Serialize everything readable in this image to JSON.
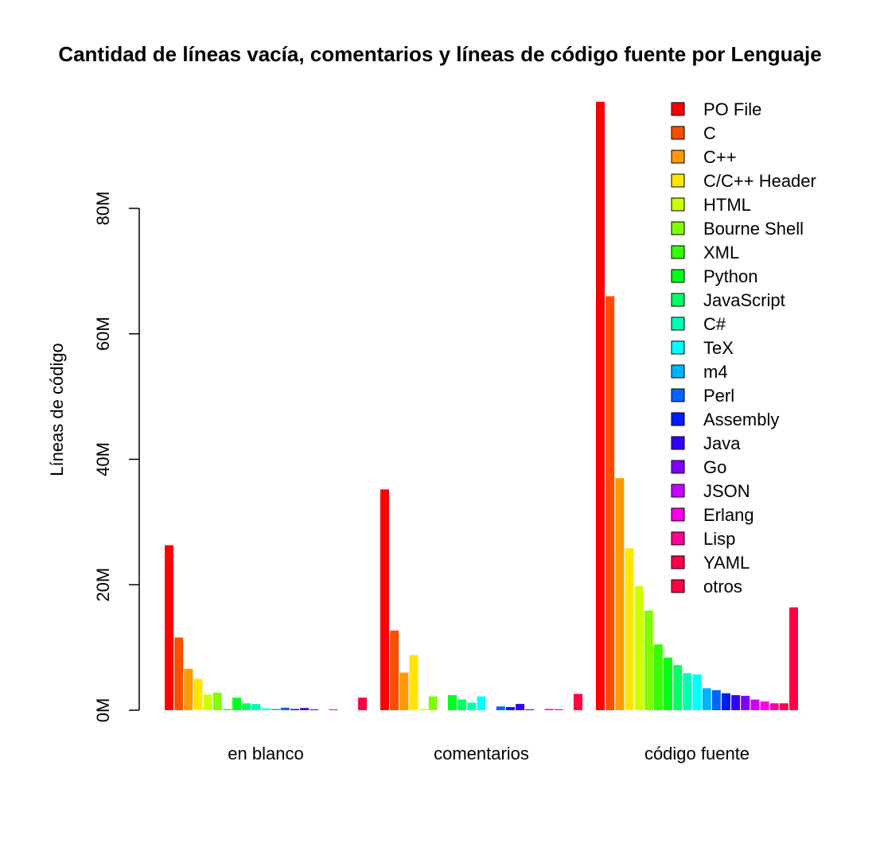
{
  "chart_data": {
    "type": "bar",
    "grouped": true,
    "title": "Cantidad de líneas vacía, comentarios y líneas de código fuente por Lenguaje",
    "ylabel": "Líneas de código",
    "ylim": [
      0,
      100000000
    ],
    "yticks": [
      {
        "value": 0,
        "label": "0M"
      },
      {
        "value": 20000000,
        "label": "20M"
      },
      {
        "value": 40000000,
        "label": "40M"
      },
      {
        "value": 60000000,
        "label": "60M"
      },
      {
        "value": 80000000,
        "label": "80M"
      }
    ],
    "categories": [
      "en blanco",
      "comentarios",
      "código fuente"
    ],
    "grid": false,
    "legend_position": "top-right",
    "series": [
      {
        "name": "PO File",
        "color": "#FF0000",
        "values": [
          26300000,
          35200000,
          97000000
        ]
      },
      {
        "name": "C",
        "color": "#FF4D00",
        "values": [
          11600000,
          12700000,
          66000000
        ]
      },
      {
        "name": "C++",
        "color": "#FF9900",
        "values": [
          6600000,
          6000000,
          37000000
        ]
      },
      {
        "name": "C/C++ Header",
        "color": "#FFE500",
        "values": [
          5000000,
          8800000,
          25800000
        ]
      },
      {
        "name": "HTML",
        "color": "#CCFF00",
        "values": [
          2500000,
          200000,
          19800000
        ]
      },
      {
        "name": "Bourne Shell",
        "color": "#80FF00",
        "values": [
          2800000,
          2200000,
          15900000
        ]
      },
      {
        "name": "XML",
        "color": "#33FF00",
        "values": [
          200000,
          0,
          10500000
        ]
      },
      {
        "name": "Python",
        "color": "#00FF19",
        "values": [
          2000000,
          2400000,
          8400000
        ]
      },
      {
        "name": "JavaScript",
        "color": "#00FF66",
        "values": [
          1100000,
          1700000,
          7200000
        ]
      },
      {
        "name": "C#",
        "color": "#00FFB2",
        "values": [
          1000000,
          1200000,
          5900000
        ]
      },
      {
        "name": "TeX",
        "color": "#00FFFF",
        "values": [
          300000,
          2200000,
          5700000
        ]
      },
      {
        "name": "m4",
        "color": "#00B3FF",
        "values": [
          200000,
          0,
          3500000
        ]
      },
      {
        "name": "Perl",
        "color": "#0066FF",
        "values": [
          400000,
          600000,
          3200000
        ]
      },
      {
        "name": "Assembly",
        "color": "#001AFF",
        "values": [
          200000,
          500000,
          2700000
        ]
      },
      {
        "name": "Java",
        "color": "#3300FF",
        "values": [
          350000,
          1000000,
          2400000
        ]
      },
      {
        "name": "Go",
        "color": "#8000FF",
        "values": [
          150000,
          150000,
          2300000
        ]
      },
      {
        "name": "JSON",
        "color": "#CC00FF",
        "values": [
          0,
          0,
          1700000
        ]
      },
      {
        "name": "Erlang",
        "color": "#FF00E6",
        "values": [
          150000,
          200000,
          1400000
        ]
      },
      {
        "name": "Lisp",
        "color": "#FF0099",
        "values": [
          0,
          150000,
          1100000
        ]
      },
      {
        "name": "YAML",
        "color": "#FF004D",
        "values": [
          0,
          0,
          1100000
        ]
      },
      {
        "name": "otros",
        "color": "#FF0040",
        "values": [
          2000000,
          2600000,
          16400000
        ]
      }
    ]
  }
}
